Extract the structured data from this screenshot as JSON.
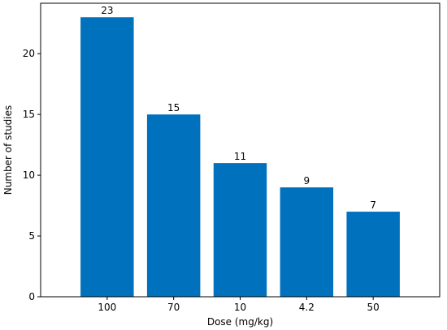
{
  "chart_data": {
    "type": "bar",
    "categories": [
      "100",
      "70",
      "10",
      "4.2",
      "50"
    ],
    "values": [
      23,
      15,
      11,
      9,
      7
    ],
    "data_labels": [
      "23",
      "15",
      "11",
      "9",
      "7"
    ],
    "xlabel": "Dose (mg/kg)",
    "ylabel": "Number of studies",
    "ylim": [
      0,
      24.15
    ],
    "yticks": [
      0,
      5,
      10,
      15,
      20
    ],
    "ytick_labels": [
      "0",
      "5",
      "10",
      "15",
      "20"
    ],
    "grid": false,
    "bar_color": "#0072bd"
  }
}
